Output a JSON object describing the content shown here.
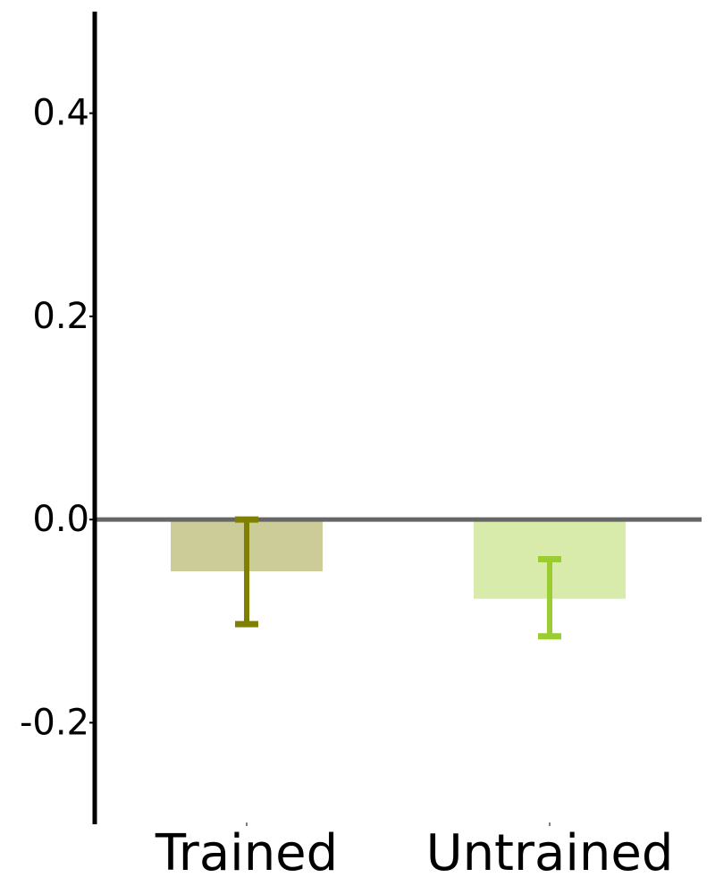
{
  "chart_data": {
    "type": "bar",
    "categories": [
      "Trained",
      "Untrained"
    ],
    "values": [
      -0.051,
      -0.078
    ],
    "error_low": [
      -0.103,
      -0.115
    ],
    "error_high": [
      0.0,
      -0.039
    ],
    "ylim": [
      -0.3,
      0.5
    ],
    "yticks": [
      -0.2,
      0.0,
      0.2,
      0.4
    ],
    "ytick_labels": [
      "-0.2",
      "0.0",
      "0.2",
      "0.4"
    ],
    "title": "",
    "xlabel": "",
    "ylabel": "",
    "grid": false,
    "zero_line": true,
    "bar_colors": [
      "#cccc99",
      "#d8ebaa"
    ],
    "error_colors": [
      "#808000",
      "#9acd32"
    ],
    "zero_line_color": "#666666",
    "axis_color": "#000000"
  }
}
